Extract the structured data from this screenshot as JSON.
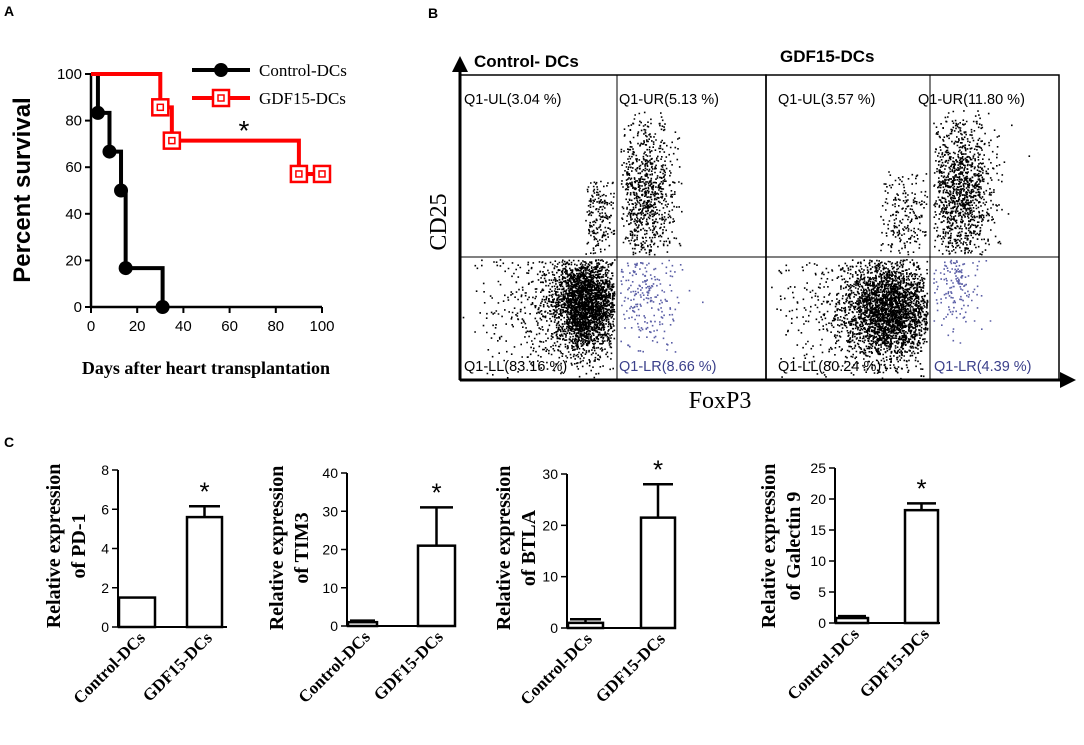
{
  "panel_letters": {
    "a": "A",
    "b": "B",
    "c": "C"
  },
  "chart_data": [
    {
      "id": "A",
      "type": "line",
      "title": "",
      "xlabel": "Days after heart transplantation",
      "ylabel": "Percent survival",
      "xlim": [
        0,
        100
      ],
      "ylim": [
        0,
        100
      ],
      "xticks": [
        0,
        20,
        40,
        60,
        80,
        100
      ],
      "yticks": [
        0,
        20,
        40,
        60,
        80,
        100
      ],
      "step": true,
      "annotation": "*",
      "series": [
        {
          "name": "Control-DCs",
          "color": "#000000",
          "marker": "circle",
          "x": [
            0,
            3,
            8,
            13,
            15,
            31
          ],
          "y": [
            100,
            83.3,
            66.7,
            50,
            16.7,
            0
          ]
        },
        {
          "name": "GDF15-DCs",
          "color": "#ff0000",
          "marker": "open-square",
          "x": [
            0,
            30,
            35,
            90,
            100
          ],
          "y": [
            100,
            85.7,
            71.4,
            57.1,
            57.1
          ]
        }
      ]
    },
    {
      "id": "B",
      "type": "scatter",
      "xlabel": "FoxP3",
      "ylabel": "CD25",
      "plots": [
        {
          "title": "Control- DCs",
          "quadrants": {
            "UL": "Q1-UL(3.04 %)",
            "UR": "Q1-UR(5.13 %)",
            "LL": "Q1-LL(83.16 %)",
            "LR": "Q1-LR(8.66 %)"
          }
        },
        {
          "title": "GDF15-DCs",
          "quadrants": {
            "UL": "Q1-UL(3.57 %)",
            "UR": "Q1-UR(11.80 %)",
            "LL": "Q1-LL(80.24 %)",
            "LR": "Q1-LR(4.39 %)"
          }
        }
      ]
    },
    {
      "id": "C1",
      "type": "bar",
      "categories": [
        "Control-DCs",
        "GDF15-DCs"
      ],
      "values": [
        1.5,
        5.6
      ],
      "errors": [
        0,
        0.55
      ],
      "ylabel_line1": "Relative expression",
      "ylabel_line2": "of PD-1",
      "ylim": [
        0,
        8
      ],
      "yticks": [
        0,
        2,
        4,
        6,
        8
      ],
      "star": "*"
    },
    {
      "id": "C2",
      "type": "bar",
      "categories": [
        "Control-DCs",
        "GDF15-DCs"
      ],
      "values": [
        1,
        21
      ],
      "errors": [
        0.4,
        10
      ],
      "ylabel_line1": "Relative expression",
      "ylabel_line2": "of TIM3",
      "ylim": [
        0,
        40
      ],
      "yticks": [
        0,
        10,
        20,
        30,
        40
      ],
      "star": "*"
    },
    {
      "id": "C3",
      "type": "bar",
      "categories": [
        "Control-DCs",
        "GDF15-DCs"
      ],
      "values": [
        1,
        21.5
      ],
      "errors": [
        0.7,
        6.5
      ],
      "ylabel_line1": "Relative expression",
      "ylabel_line2": "of BTLA",
      "ylim": [
        0,
        30
      ],
      "yticks": [
        0,
        10,
        20,
        30
      ],
      "star": "*"
    },
    {
      "id": "C4",
      "type": "bar",
      "categories": [
        "Control-DCs",
        "GDF15-DCs"
      ],
      "values": [
        0.8,
        18.2
      ],
      "errors": [
        0.3,
        1.1
      ],
      "ylabel_line1": "Relative expression",
      "ylabel_line2": "of Galectin 9",
      "ylim": [
        0,
        25
      ],
      "yticks": [
        0,
        5,
        10,
        15,
        20,
        25
      ],
      "star": "*"
    }
  ]
}
